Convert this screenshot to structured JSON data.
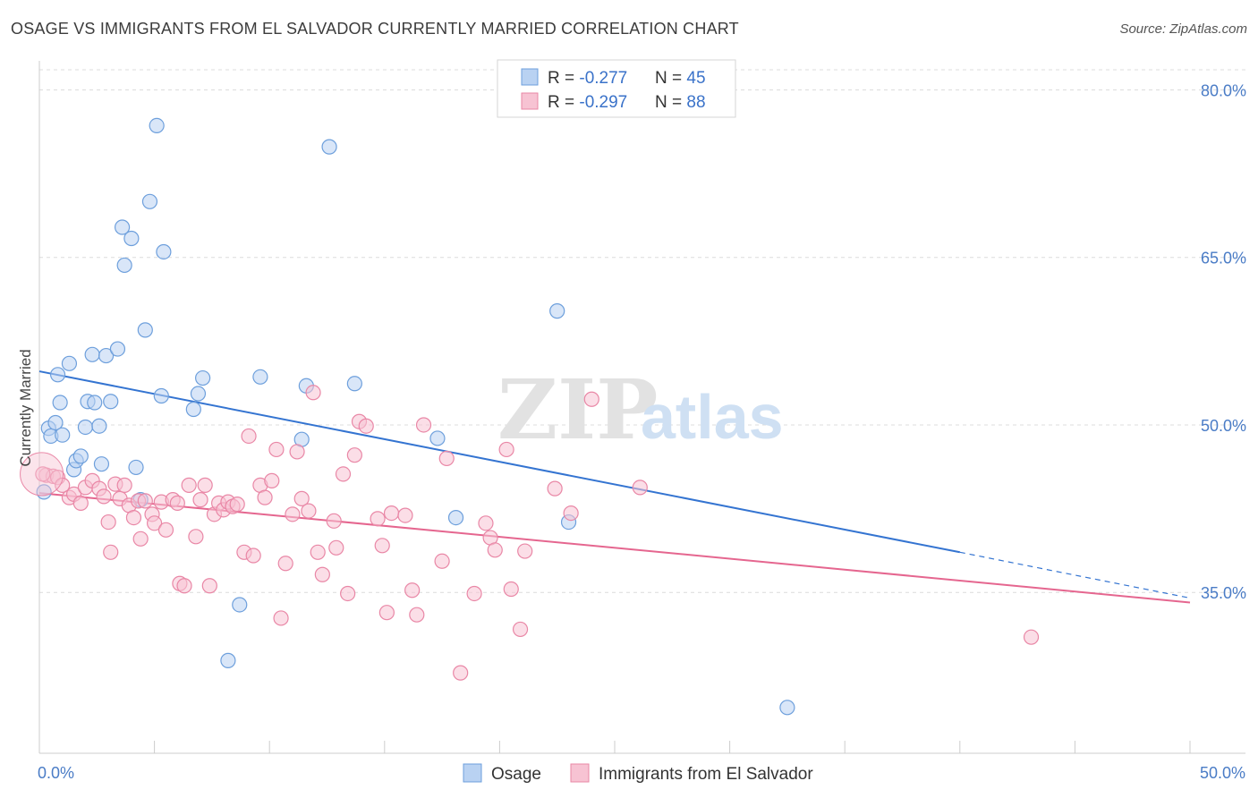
{
  "title": "OSAGE VS IMMIGRANTS FROM EL SALVADOR CURRENTLY MARRIED CORRELATION CHART",
  "source": "Source: ZipAtlas.com",
  "watermark": {
    "zip": "ZIP",
    "atlas": "atlas"
  },
  "legend_top": [
    {
      "r_label": "R = ",
      "r_value": "-0.277",
      "n_label": "N = ",
      "n_value": "45"
    },
    {
      "r_label": "R = ",
      "r_value": "-0.297",
      "n_label": "N = ",
      "n_value": "88"
    }
  ],
  "legend_bottom": [
    "Osage",
    "Immigrants from El Salvador"
  ],
  "colors": {
    "osage_fill": "#b9d2f2",
    "osage_stroke": "#6d9fdc",
    "osage_line": "#3474d1",
    "salv_fill": "#f7c3d3",
    "salv_stroke": "#e987a6",
    "salv_line": "#e5668f",
    "tick_text": "#4a7cc6",
    "grid": "#dcdcdc"
  },
  "chart_data": {
    "type": "scatter",
    "title": "OSAGE VS IMMIGRANTS FROM EL SALVADOR CURRENTLY MARRIED CORRELATION CHART",
    "xlabel": "",
    "ylabel": "Currently Married",
    "xlim": [
      0,
      50
    ],
    "ylim": [
      20.6,
      82.6
    ],
    "x_ticks": [
      0,
      50
    ],
    "x_tick_labels": [
      "0.0%",
      "50.0%"
    ],
    "y_ticks": [
      35,
      50,
      65,
      80
    ],
    "y_tick_labels": [
      "35.0%",
      "50.0%",
      "65.0%",
      "80.0%"
    ],
    "grid": true,
    "legend_position": "top-center",
    "series": [
      {
        "name": "Osage",
        "r": -0.277,
        "n": 45,
        "trend": {
          "x0": 0,
          "y0": 54.8,
          "x1": 40,
          "y1": 38.6,
          "dashed_to_x": 50,
          "dashed_to_y": 34.5
        },
        "points": [
          [
            0.2,
            44.0
          ],
          [
            0.4,
            49.7
          ],
          [
            0.5,
            49.0
          ],
          [
            0.7,
            50.2
          ],
          [
            0.8,
            54.5
          ],
          [
            0.9,
            52.0
          ],
          [
            1.0,
            49.1
          ],
          [
            1.3,
            55.5
          ],
          [
            1.5,
            46.0
          ],
          [
            1.6,
            46.8
          ],
          [
            1.8,
            47.2
          ],
          [
            2.0,
            49.8
          ],
          [
            2.1,
            52.1
          ],
          [
            2.3,
            56.3
          ],
          [
            2.4,
            52.0
          ],
          [
            2.6,
            49.9
          ],
          [
            2.7,
            46.5
          ],
          [
            2.9,
            56.2
          ],
          [
            3.1,
            52.1
          ],
          [
            3.4,
            56.8
          ],
          [
            3.6,
            67.7
          ],
          [
            3.7,
            64.3
          ],
          [
            4.0,
            66.7
          ],
          [
            4.2,
            46.2
          ],
          [
            4.4,
            43.3
          ],
          [
            4.6,
            58.5
          ],
          [
            4.8,
            70.0
          ],
          [
            5.1,
            76.8
          ],
          [
            5.3,
            52.6
          ],
          [
            5.4,
            65.5
          ],
          [
            6.7,
            51.4
          ],
          [
            6.9,
            52.8
          ],
          [
            7.1,
            54.2
          ],
          [
            8.2,
            28.9
          ],
          [
            8.7,
            33.9
          ],
          [
            9.6,
            54.3
          ],
          [
            11.4,
            48.7
          ],
          [
            11.6,
            53.5
          ],
          [
            12.6,
            74.9
          ],
          [
            13.7,
            53.7
          ],
          [
            17.3,
            48.8
          ],
          [
            18.1,
            41.7
          ],
          [
            22.5,
            60.2
          ],
          [
            23.0,
            41.3
          ],
          [
            32.5,
            24.7
          ]
        ]
      },
      {
        "name": "Immigrants from El Salvador",
        "r": -0.297,
        "n": 88,
        "trend": {
          "x0": 0,
          "y0": 43.9,
          "x1": 50,
          "y1": 34.1
        },
        "points": [
          [
            0.3,
            45.5
          ],
          [
            0.6,
            45.4
          ],
          [
            0.8,
            45.3
          ],
          [
            1.0,
            44.6
          ],
          [
            1.3,
            43.5
          ],
          [
            1.5,
            43.8
          ],
          [
            1.8,
            43.0
          ],
          [
            2.0,
            44.4
          ],
          [
            2.3,
            45.0
          ],
          [
            2.6,
            44.3
          ],
          [
            2.8,
            43.6
          ],
          [
            3.0,
            41.3
          ],
          [
            3.1,
            38.6
          ],
          [
            3.3,
            44.7
          ],
          [
            3.5,
            43.4
          ],
          [
            3.7,
            44.6
          ],
          [
            3.9,
            42.8
          ],
          [
            4.1,
            41.7
          ],
          [
            4.3,
            43.2
          ],
          [
            4.4,
            39.8
          ],
          [
            4.6,
            43.2
          ],
          [
            4.9,
            42.0
          ],
          [
            5.0,
            41.2
          ],
          [
            5.3,
            43.1
          ],
          [
            5.5,
            40.6
          ],
          [
            5.8,
            43.3
          ],
          [
            6.0,
            43.0
          ],
          [
            6.1,
            35.8
          ],
          [
            6.3,
            35.6
          ],
          [
            6.5,
            44.6
          ],
          [
            6.8,
            40.0
          ],
          [
            7.0,
            43.3
          ],
          [
            7.2,
            44.6
          ],
          [
            7.4,
            35.6
          ],
          [
            7.6,
            42.0
          ],
          [
            7.8,
            43.0
          ],
          [
            8.0,
            42.4
          ],
          [
            8.2,
            43.1
          ],
          [
            8.4,
            42.7
          ],
          [
            8.6,
            42.9
          ],
          [
            8.9,
            38.6
          ],
          [
            9.1,
            49.0
          ],
          [
            9.3,
            38.3
          ],
          [
            9.6,
            44.6
          ],
          [
            9.8,
            43.5
          ],
          [
            10.1,
            45.0
          ],
          [
            10.3,
            47.8
          ],
          [
            10.5,
            32.7
          ],
          [
            10.7,
            37.6
          ],
          [
            11.0,
            42.0
          ],
          [
            11.2,
            47.6
          ],
          [
            11.4,
            43.4
          ],
          [
            11.7,
            42.3
          ],
          [
            11.9,
            52.9
          ],
          [
            12.1,
            38.6
          ],
          [
            12.3,
            36.6
          ],
          [
            12.8,
            41.4
          ],
          [
            12.9,
            39.0
          ],
          [
            13.2,
            45.6
          ],
          [
            13.4,
            34.9
          ],
          [
            13.7,
            47.3
          ],
          [
            13.9,
            50.3
          ],
          [
            14.2,
            49.9
          ],
          [
            14.7,
            41.6
          ],
          [
            14.9,
            39.2
          ],
          [
            15.1,
            33.2
          ],
          [
            15.3,
            42.1
          ],
          [
            15.9,
            41.9
          ],
          [
            16.2,
            35.2
          ],
          [
            16.4,
            33.0
          ],
          [
            16.7,
            50.0
          ],
          [
            17.5,
            37.8
          ],
          [
            17.7,
            47.0
          ],
          [
            18.3,
            27.8
          ],
          [
            18.9,
            34.9
          ],
          [
            19.4,
            41.2
          ],
          [
            19.6,
            39.9
          ],
          [
            19.8,
            38.8
          ],
          [
            20.3,
            47.8
          ],
          [
            20.5,
            35.3
          ],
          [
            20.9,
            31.7
          ],
          [
            21.1,
            38.7
          ],
          [
            22.4,
            44.3
          ],
          [
            23.1,
            42.1
          ],
          [
            24.0,
            52.3
          ],
          [
            26.1,
            44.4
          ],
          [
            43.1,
            31.0
          ],
          [
            0.15,
            45.6
          ]
        ]
      }
    ]
  }
}
